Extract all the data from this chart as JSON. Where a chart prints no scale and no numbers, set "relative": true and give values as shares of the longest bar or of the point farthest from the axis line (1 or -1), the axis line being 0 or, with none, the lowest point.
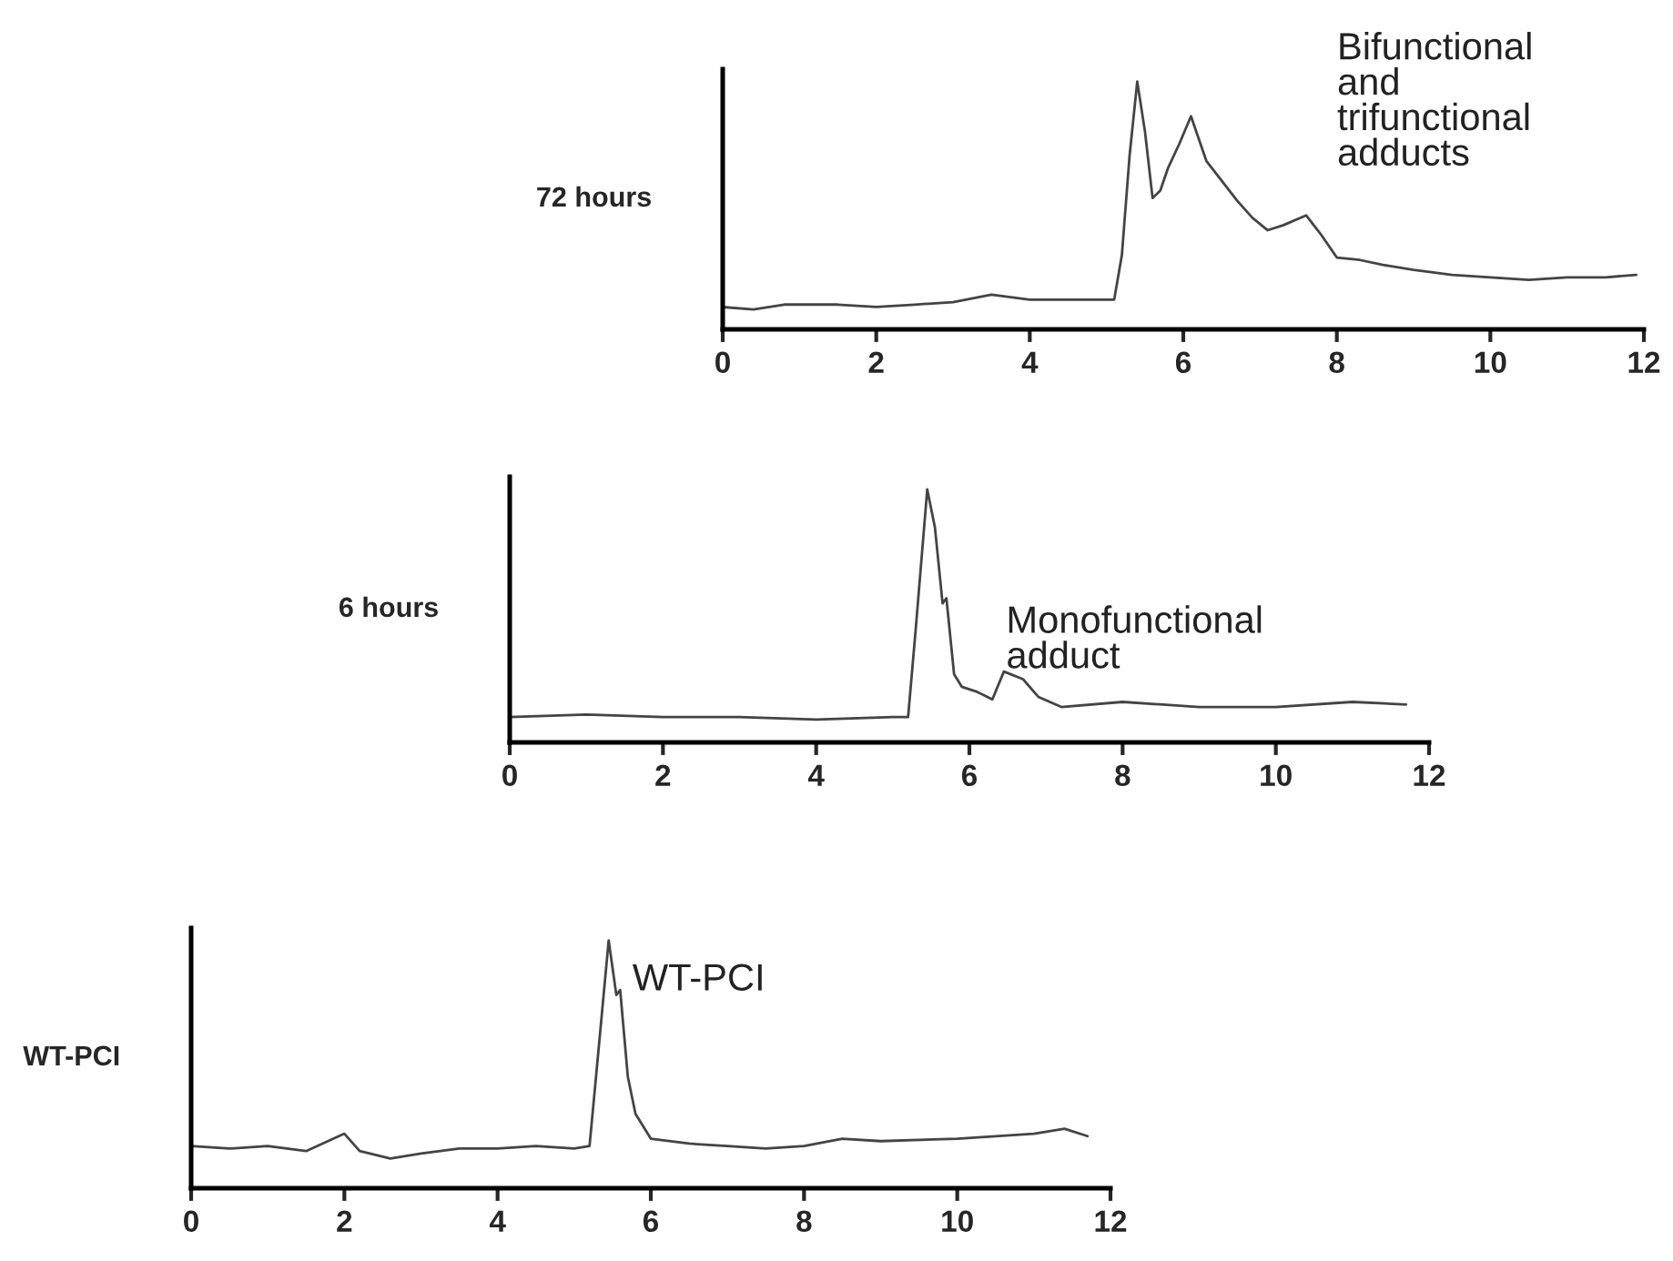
{
  "chart_data": [
    {
      "type": "line",
      "ylabel": "72 hours",
      "relative": true,
      "xlim": [
        0,
        12
      ],
      "xticks": [
        0,
        2,
        4,
        6,
        8,
        10,
        12
      ],
      "grid": false,
      "legend": false,
      "annotations": [
        "Bifunctional\nand\ntrifunctional\nadducts"
      ],
      "series": [
        {
          "color": "#444444",
          "x": [
            0.0,
            0.4,
            0.8,
            1.5,
            2.0,
            2.5,
            3.0,
            3.5,
            4.0,
            4.5,
            5.0,
            5.1,
            5.2,
            5.3,
            5.4,
            5.5,
            5.6,
            5.7,
            5.8,
            5.95,
            6.1,
            6.3,
            6.5,
            6.7,
            6.9,
            7.1,
            7.3,
            7.6,
            7.8,
            8.0,
            8.3,
            8.6,
            9.0,
            9.5,
            10.0,
            10.5,
            11.0,
            11.5,
            11.9
          ],
          "values": [
            0.09,
            0.08,
            0.1,
            0.1,
            0.09,
            0.1,
            0.11,
            0.14,
            0.12,
            0.12,
            0.12,
            0.12,
            0.3,
            0.7,
            1.0,
            0.8,
            0.53,
            0.56,
            0.65,
            0.75,
            0.86,
            0.68,
            0.6,
            0.52,
            0.45,
            0.4,
            0.42,
            0.46,
            0.38,
            0.29,
            0.28,
            0.26,
            0.24,
            0.22,
            0.21,
            0.2,
            0.21,
            0.21,
            0.22
          ]
        }
      ]
    },
    {
      "type": "line",
      "ylabel": "6 hours",
      "relative": true,
      "xlim": [
        0,
        12
      ],
      "xticks": [
        0,
        2,
        4,
        6,
        8,
        10,
        12
      ],
      "grid": false,
      "legend": false,
      "annotations": [
        "Monofunctional\nadduct"
      ],
      "series": [
        {
          "color": "#444444",
          "x": [
            0,
            1,
            2,
            3,
            4,
            5,
            5.2,
            5.3,
            5.45,
            5.55,
            5.65,
            5.7,
            5.8,
            5.9,
            6.1,
            6.3,
            6.45,
            6.7,
            6.9,
            7.2,
            8,
            9,
            10,
            11,
            11.7
          ],
          "values": [
            0.1,
            0.11,
            0.1,
            0.1,
            0.09,
            0.1,
            0.1,
            0.45,
            1.0,
            0.85,
            0.55,
            0.57,
            0.27,
            0.22,
            0.2,
            0.17,
            0.28,
            0.25,
            0.18,
            0.14,
            0.16,
            0.14,
            0.14,
            0.16,
            0.15
          ]
        }
      ]
    },
    {
      "type": "line",
      "ylabel": "WT-PCI",
      "relative": true,
      "xlim": [
        0,
        12
      ],
      "xticks": [
        0,
        2,
        4,
        6,
        8,
        10,
        12
      ],
      "grid": false,
      "legend": false,
      "annotations": [
        "WT-PCI"
      ],
      "series": [
        {
          "color": "#444444",
          "x": [
            0,
            0.5,
            1,
            1.5,
            2,
            2.2,
            2.6,
            3,
            3.5,
            4,
            4.5,
            5.0,
            5.2,
            5.3,
            5.45,
            5.55,
            5.6,
            5.7,
            5.8,
            6.0,
            6.5,
            7,
            7.5,
            8,
            8.5,
            9,
            10,
            11,
            11.4,
            11.7
          ],
          "values": [
            0.17,
            0.16,
            0.17,
            0.15,
            0.22,
            0.15,
            0.12,
            0.14,
            0.16,
            0.16,
            0.17,
            0.16,
            0.17,
            0.5,
            1.0,
            0.78,
            0.8,
            0.45,
            0.3,
            0.2,
            0.18,
            0.17,
            0.16,
            0.17,
            0.2,
            0.19,
            0.2,
            0.22,
            0.24,
            0.21
          ]
        }
      ]
    }
  ]
}
